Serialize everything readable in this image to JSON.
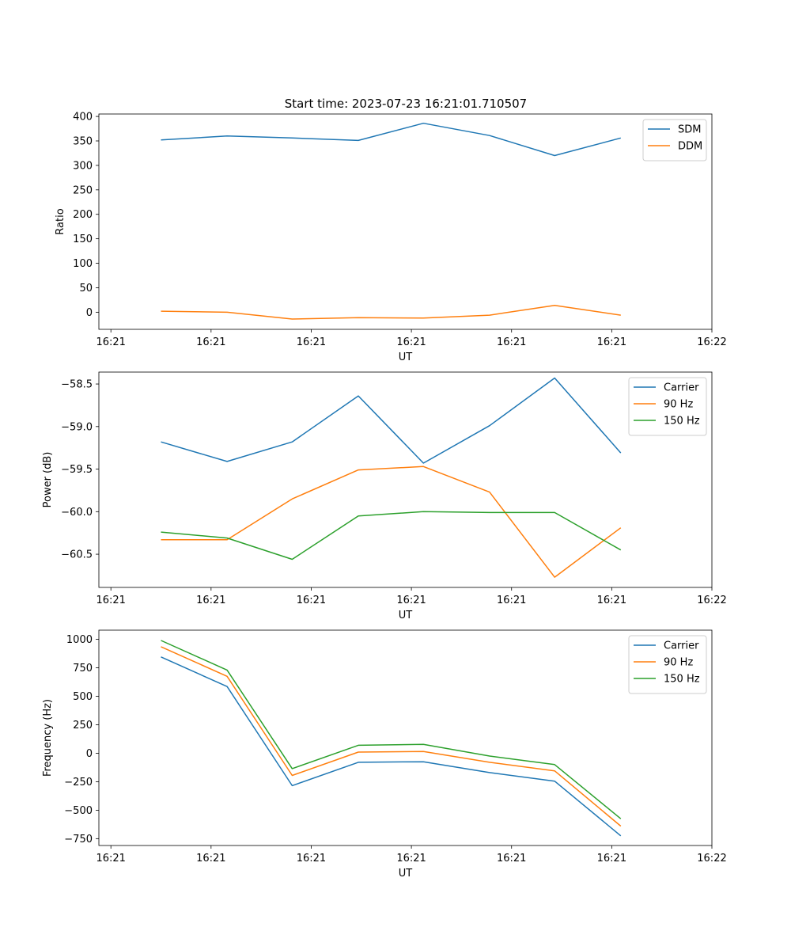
{
  "figure_title": "Start time: 2023-07-23 16:21:01.710507",
  "colors": {
    "series1": "#1f77b4",
    "series2": "#ff7f0e",
    "series3": "#2ca02c",
    "axis": "#000000",
    "background": "#ffffff"
  },
  "chart_data": [
    {
      "type": "line",
      "title": "Start time: 2023-07-23 16:21:01.710507",
      "xlabel": "UT",
      "ylabel": "Ratio",
      "x_tick_labels": [
        "16:21",
        "16:21",
        "16:21",
        "16:21",
        "16:21",
        "16:21",
        "16:22"
      ],
      "x_ticks": [
        0,
        1,
        2,
        3,
        4,
        5,
        6
      ],
      "xlim": [
        -0.12,
        6.0
      ],
      "x": [
        0.5,
        1.16,
        1.81,
        2.47,
        3.12,
        3.78,
        4.43,
        5.09
      ],
      "ylim": [
        -35,
        405
      ],
      "y_ticks": [
        0,
        50,
        100,
        150,
        200,
        250,
        300,
        350,
        400
      ],
      "grid": false,
      "legend_position": "top-right",
      "series": [
        {
          "name": "SDM",
          "values": [
            352,
            360,
            356,
            351,
            386,
            361,
            320,
            356
          ]
        },
        {
          "name": "DDM",
          "values": [
            2,
            0,
            -14,
            -11,
            -12,
            -6,
            14,
            -6
          ]
        }
      ]
    },
    {
      "type": "line",
      "title": "",
      "xlabel": "UT",
      "ylabel": "Power (dB)",
      "x_tick_labels": [
        "16:21",
        "16:21",
        "16:21",
        "16:21",
        "16:21",
        "16:21",
        "16:22"
      ],
      "x_ticks": [
        0,
        1,
        2,
        3,
        4,
        5,
        6
      ],
      "xlim": [
        -0.12,
        6.0
      ],
      "x": [
        0.5,
        1.16,
        1.81,
        2.47,
        3.12,
        3.78,
        4.43,
        5.09
      ],
      "ylim": [
        -60.89,
        -58.36
      ],
      "y_ticks": [
        -60.5,
        -60.0,
        -59.5,
        -59.0,
        -58.5
      ],
      "y_tick_labels": [
        "−60.5",
        "−60.0",
        "−59.5",
        "−59.0",
        "−58.5"
      ],
      "grid": false,
      "legend_position": "top-right",
      "series": [
        {
          "name": "Carrier",
          "values": [
            -59.18,
            -59.41,
            -59.18,
            -58.64,
            -59.43,
            -58.99,
            -58.43,
            -59.31
          ]
        },
        {
          "name": "90 Hz",
          "values": [
            -60.33,
            -60.33,
            -59.85,
            -59.51,
            -59.47,
            -59.77,
            -60.77,
            -60.19
          ]
        },
        {
          "name": "150 Hz",
          "values": [
            -60.24,
            -60.31,
            -60.56,
            -60.05,
            -60.0,
            -60.01,
            -60.01,
            -60.45
          ]
        }
      ]
    },
    {
      "type": "line",
      "title": "",
      "xlabel": "UT",
      "ylabel": "Frequency (Hz)",
      "x_tick_labels": [
        "16:21",
        "16:21",
        "16:21",
        "16:21",
        "16:21",
        "16:21",
        "16:22"
      ],
      "x_ticks": [
        0,
        1,
        2,
        3,
        4,
        5,
        6
      ],
      "xlim": [
        -0.12,
        6.0
      ],
      "x": [
        0.5,
        1.16,
        1.81,
        2.47,
        3.12,
        3.78,
        4.43,
        5.09
      ],
      "ylim": [
        -810,
        1080
      ],
      "y_ticks": [
        -750,
        -500,
        -250,
        0,
        250,
        500,
        750,
        1000
      ],
      "y_tick_labels": [
        "−750",
        "−500",
        "−250",
        "0",
        "250",
        "500",
        "750",
        "1000"
      ],
      "grid": false,
      "legend_position": "top-right",
      "series": [
        {
          "name": "Carrier",
          "values": [
            845,
            585,
            -285,
            -80,
            -75,
            -170,
            -245,
            -725
          ]
        },
        {
          "name": "90 Hz",
          "values": [
            935,
            675,
            -195,
            10,
            15,
            -80,
            -155,
            -640
          ]
        },
        {
          "name": "150 Hz",
          "values": [
            990,
            730,
            -135,
            70,
            78,
            -25,
            -100,
            -575
          ]
        }
      ]
    }
  ]
}
